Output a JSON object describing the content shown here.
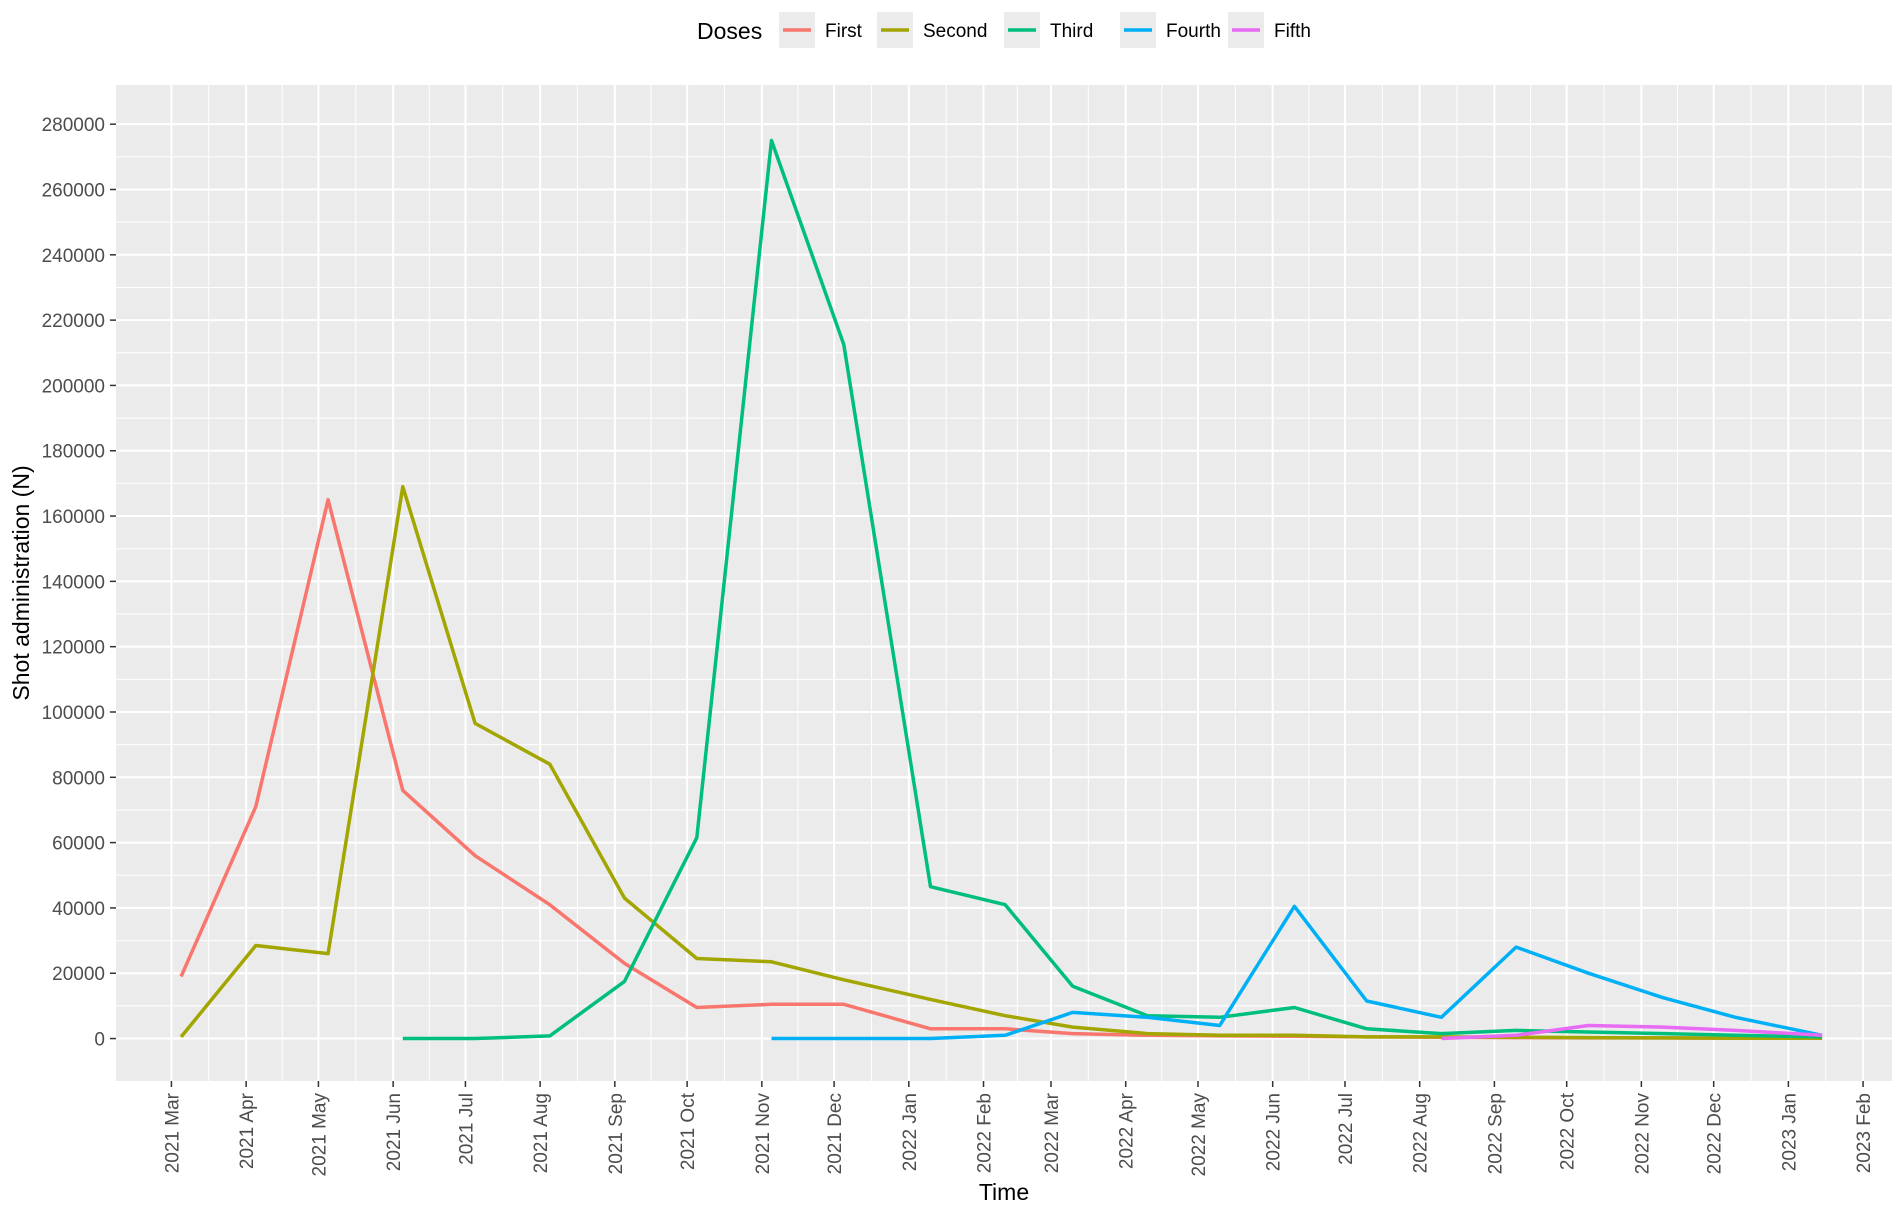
{
  "chart_data": {
    "type": "line",
    "title": "",
    "xlabel": "Time",
    "ylabel": "Shot administration (N)",
    "legend": {
      "title": "Doses",
      "placement": "top"
    },
    "grid": true,
    "ylim": [
      -13000,
      292000
    ],
    "yticks": [
      0,
      20000,
      40000,
      60000,
      80000,
      100000,
      120000,
      140000,
      160000,
      180000,
      200000,
      220000,
      240000,
      260000,
      280000
    ],
    "ytick_labels": [
      "0",
      "20000",
      "40000",
      "60000",
      "80000",
      "100000",
      "120000",
      "140000",
      "160000",
      "180000",
      "200000",
      "220000",
      "240000",
      "260000",
      "280000"
    ],
    "xlim": [
      "2021-02-06",
      "2023-02-13"
    ],
    "xticks": [
      "2021-03-01",
      "2021-04-01",
      "2021-05-01",
      "2021-06-01",
      "2021-07-01",
      "2021-08-01",
      "2021-09-01",
      "2021-10-01",
      "2021-11-01",
      "2021-12-01",
      "2022-01-01",
      "2022-02-01",
      "2022-03-01",
      "2022-04-01",
      "2022-05-01",
      "2022-06-01",
      "2022-07-01",
      "2022-08-01",
      "2022-09-01",
      "2022-10-01",
      "2022-11-01",
      "2022-12-01",
      "2023-01-01",
      "2023-02-01"
    ],
    "xtick_labels": [
      "2021 Mar",
      "2021 Apr",
      "2021 May",
      "2021 Jun",
      "2021 Jul",
      "2021 Aug",
      "2021 Sep",
      "2021 Oct",
      "2021 Nov",
      "2021 Dec",
      "2022 Jan",
      "2022 Feb",
      "2022 Mar",
      "2022 Apr",
      "2022 May",
      "2022 Jun",
      "2022 Jul",
      "2022 Aug",
      "2022 Sep",
      "2022 Oct",
      "2022 Nov",
      "2022 Dec",
      "2023 Jan",
      "2023 Feb"
    ],
    "series": [
      {
        "name": "First",
        "color": "#F8766D",
        "points": [
          [
            "2021-03-05",
            19000
          ],
          [
            "2021-04-05",
            71000
          ],
          [
            "2021-05-05",
            165000
          ],
          [
            "2021-06-05",
            76000
          ],
          [
            "2021-07-05",
            56000
          ],
          [
            "2021-08-05",
            41000
          ],
          [
            "2021-09-05",
            23000
          ],
          [
            "2021-10-05",
            9500
          ],
          [
            "2021-11-05",
            10500
          ],
          [
            "2021-12-05",
            10500
          ],
          [
            "2022-01-10",
            3000
          ],
          [
            "2022-02-10",
            3000
          ],
          [
            "2022-03-10",
            1500
          ],
          [
            "2022-04-10",
            1000
          ],
          [
            "2022-05-10",
            800
          ],
          [
            "2022-06-10",
            700
          ],
          [
            "2022-07-10",
            500
          ],
          [
            "2022-08-10",
            400
          ],
          [
            "2022-09-10",
            300
          ],
          [
            "2022-10-10",
            200
          ],
          [
            "2022-11-10",
            200
          ],
          [
            "2022-12-10",
            100
          ],
          [
            "2023-01-15",
            100
          ]
        ]
      },
      {
        "name": "Second",
        "color": "#A3A500",
        "points": [
          [
            "2021-03-05",
            500
          ],
          [
            "2021-04-05",
            28500
          ],
          [
            "2021-05-05",
            26000
          ],
          [
            "2021-06-05",
            169000
          ],
          [
            "2021-07-05",
            96500
          ],
          [
            "2021-08-05",
            84000
          ],
          [
            "2021-09-05",
            43000
          ],
          [
            "2021-10-05",
            24500
          ],
          [
            "2021-11-05",
            23500
          ],
          [
            "2021-12-05",
            18000
          ],
          [
            "2022-01-10",
            12000
          ],
          [
            "2022-02-10",
            7000
          ],
          [
            "2022-03-10",
            3500
          ],
          [
            "2022-04-10",
            1500
          ],
          [
            "2022-05-10",
            1000
          ],
          [
            "2022-06-10",
            1000
          ],
          [
            "2022-07-10",
            500
          ],
          [
            "2022-08-10",
            500
          ],
          [
            "2022-09-10",
            400
          ],
          [
            "2022-10-10",
            300
          ],
          [
            "2022-11-10",
            200
          ],
          [
            "2022-12-10",
            100
          ],
          [
            "2023-01-15",
            100
          ]
        ]
      },
      {
        "name": "Third",
        "color": "#00BF7D",
        "points": [
          [
            "2021-06-05",
            0
          ],
          [
            "2021-07-05",
            0
          ],
          [
            "2021-08-05",
            800
          ],
          [
            "2021-09-05",
            17500
          ],
          [
            "2021-10-05",
            61500
          ],
          [
            "2021-11-05",
            275000
          ],
          [
            "2021-12-05",
            212500
          ],
          [
            "2022-01-10",
            46500
          ],
          [
            "2022-02-10",
            41000
          ],
          [
            "2022-03-10",
            16000
          ],
          [
            "2022-04-10",
            7000
          ],
          [
            "2022-05-10",
            6500
          ],
          [
            "2022-06-10",
            9500
          ],
          [
            "2022-07-10",
            3000
          ],
          [
            "2022-08-10",
            1500
          ],
          [
            "2022-09-10",
            2500
          ],
          [
            "2022-10-10",
            2000
          ],
          [
            "2022-11-10",
            1500
          ],
          [
            "2022-12-10",
            1000
          ],
          [
            "2023-01-15",
            500
          ]
        ]
      },
      {
        "name": "Fourth",
        "color": "#00B0F6",
        "points": [
          [
            "2021-11-05",
            0
          ],
          [
            "2021-12-05",
            0
          ],
          [
            "2022-01-10",
            0
          ],
          [
            "2022-02-10",
            1000
          ],
          [
            "2022-03-10",
            8000
          ],
          [
            "2022-04-10",
            6500
          ],
          [
            "2022-05-10",
            4000
          ],
          [
            "2022-06-10",
            40500
          ],
          [
            "2022-07-10",
            11500
          ],
          [
            "2022-08-10",
            6500
          ],
          [
            "2022-09-10",
            28000
          ],
          [
            "2022-10-10",
            20000
          ],
          [
            "2022-11-10",
            12500
          ],
          [
            "2022-12-10",
            6500
          ],
          [
            "2023-01-15",
            1000
          ]
        ]
      },
      {
        "name": "Fifth",
        "color": "#E76BF3",
        "points": [
          [
            "2022-08-10",
            0
          ],
          [
            "2022-09-10",
            1000
          ],
          [
            "2022-10-10",
            4000
          ],
          [
            "2022-11-10",
            3500
          ],
          [
            "2022-12-10",
            2500
          ],
          [
            "2023-01-15",
            1000
          ]
        ]
      }
    ]
  }
}
